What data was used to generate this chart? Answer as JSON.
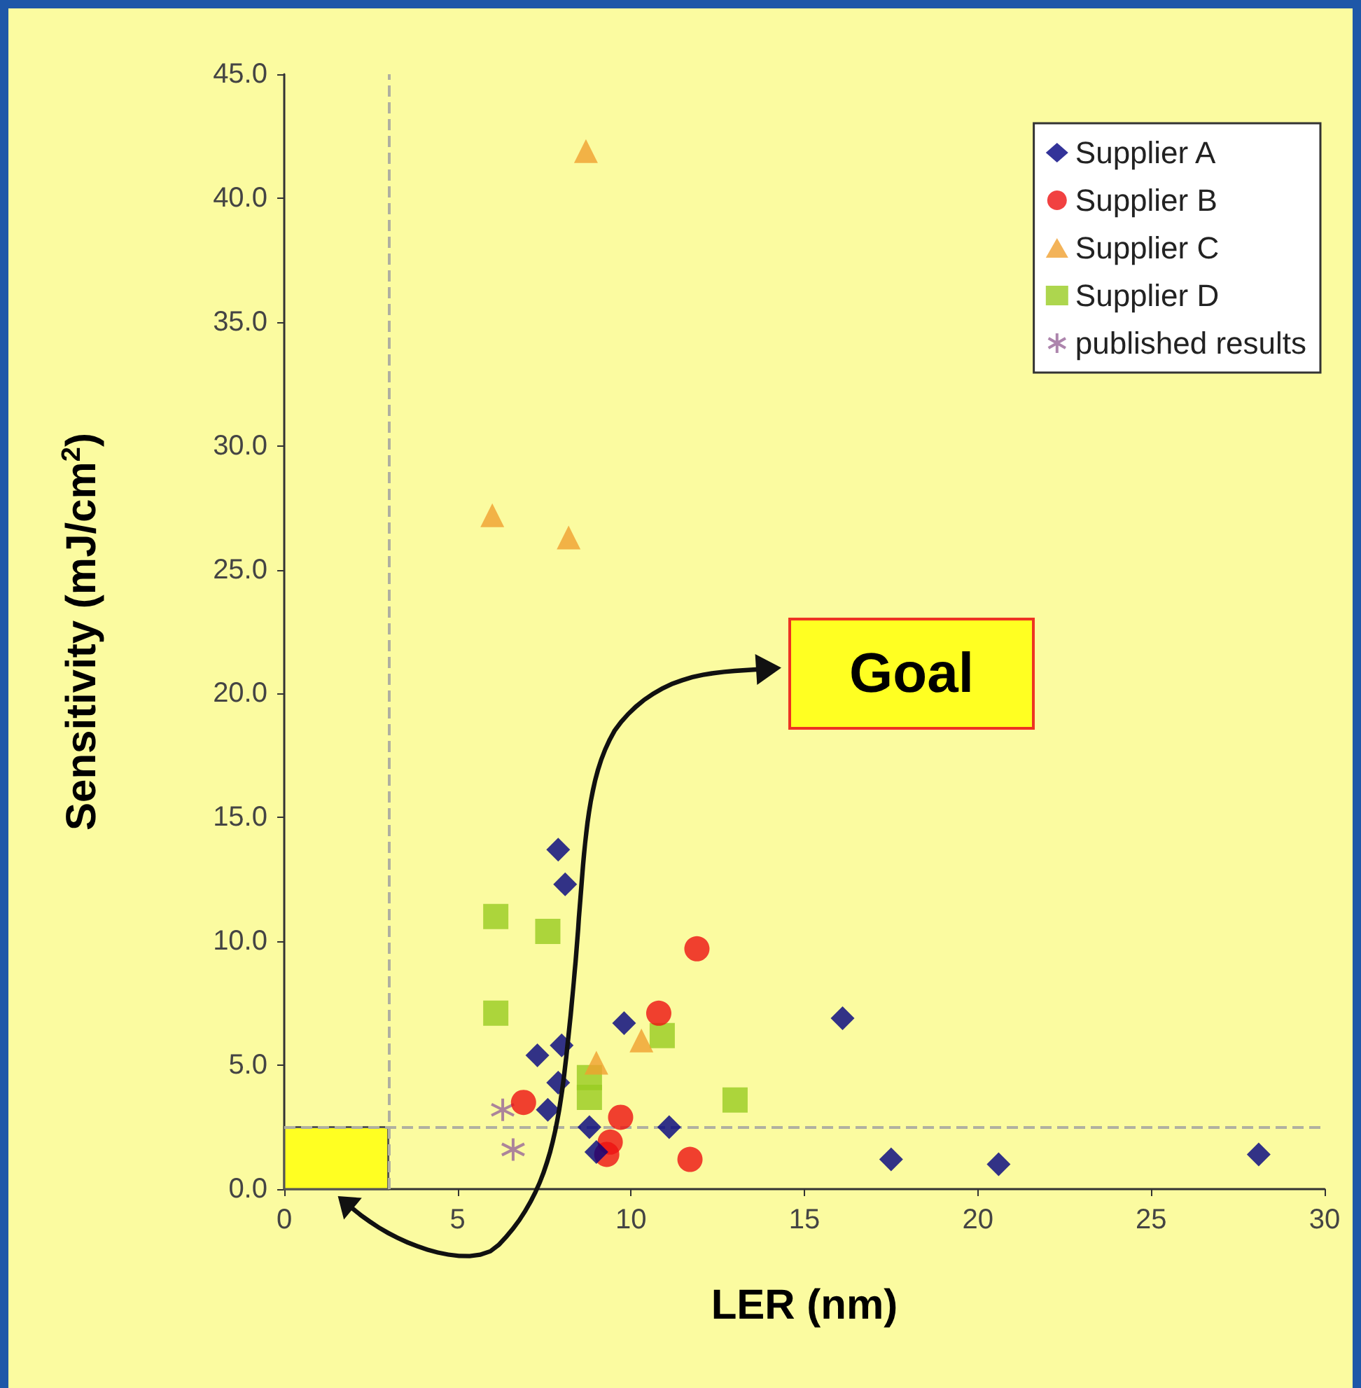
{
  "chart_data": {
    "type": "scatter",
    "xlabel": "LER (nm)",
    "ylabel": "Sensitivity (mJ/cm$^{2}$)",
    "xlim": [
      0,
      30
    ],
    "xticks": [
      0,
      5,
      10,
      15,
      20,
      25,
      30
    ],
    "ylim": [
      0,
      45
    ],
    "yticks": [
      {
        "value": 0,
        "label": "0.0"
      },
      {
        "value": 5,
        "label": "5.0"
      },
      {
        "value": 10,
        "label": "10.0"
      },
      {
        "value": 15,
        "label": "15.0"
      },
      {
        "value": 20,
        "label": "20.0"
      },
      {
        "value": 25,
        "label": "25.0"
      },
      {
        "value": 30,
        "label": "30.0"
      },
      {
        "value": 35,
        "label": "35.0"
      },
      {
        "value": 40,
        "label": "40.0"
      },
      {
        "value": 45,
        "label": "45.0"
      }
    ],
    "grid": false,
    "legend": "top right",
    "series": [
      {
        "name": "Supplier A",
        "color": "#000080",
        "marker": "diamond",
        "x": [
          7.9,
          8.1,
          9.8,
          7.3,
          8.0,
          7.9,
          7.6,
          8.8,
          11.1,
          9.0,
          16.1,
          17.5,
          20.6,
          28.1
        ],
        "values": [
          13.7,
          12.3,
          6.7,
          5.4,
          5.8,
          4.3,
          3.2,
          2.5,
          2.5,
          1.5,
          6.9,
          1.2,
          1.0,
          1.4
        ]
      },
      {
        "name": "Supplier B",
        "color": "#ee1111",
        "marker": "circle",
        "x": [
          11.9,
          10.8,
          6.9,
          9.7,
          9.4,
          9.3,
          11.7
        ],
        "values": [
          9.7,
          7.1,
          3.5,
          2.9,
          1.9,
          1.4,
          1.2
        ]
      },
      {
        "name": "Supplier C",
        "color": "#f0a030",
        "marker": "triangle",
        "x": [
          8.7,
          6.0,
          8.2,
          9.0,
          10.3
        ],
        "values": [
          41.9,
          27.2,
          26.3,
          5.1,
          6.0
        ]
      },
      {
        "name": "Supplier D",
        "color": "#99cc22",
        "marker": "square",
        "x": [
          6.1,
          7.6,
          6.1,
          10.9,
          8.8,
          8.8,
          13.0
        ],
        "values": [
          11.0,
          10.4,
          7.1,
          6.2,
          4.5,
          3.7,
          3.6
        ]
      },
      {
        "name": "published results",
        "color": "#996699",
        "marker": "cross",
        "x": [
          6.3,
          6.6
        ],
        "values": [
          3.2,
          1.6
        ]
      }
    ],
    "ref_lines": [
      {
        "axis": "x",
        "value": 3,
        "color": "#b0b0a0",
        "line_style": "dashed"
      },
      {
        "axis": "y",
        "value": 2.5,
        "color": "#b0b0a0",
        "line_style": "dashed"
      }
    ],
    "bands": [
      {
        "axis": "x",
        "from": 0,
        "to": 3,
        "color": "#ffff22"
      }
    ],
    "annotations": [
      "Goal"
    ]
  }
}
